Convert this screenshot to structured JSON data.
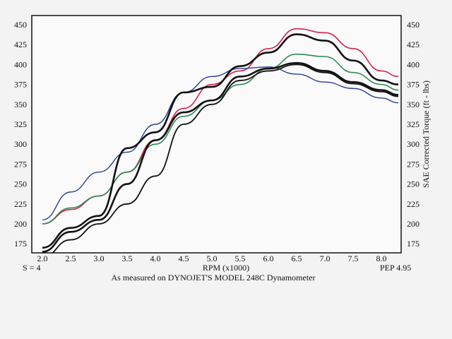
{
  "chart_data": {
    "type": "line",
    "title": "",
    "xlabel": "RPM  (x1000)",
    "ylabel": "SAE  Corrected Torque  (ft - lbs)",
    "xlim": [
      1.8,
      8.35
    ],
    "ylim": [
      162,
      462
    ],
    "x_ticks": [
      "2.0",
      "2.5",
      "3.0",
      "3.5",
      "4.0",
      "4.5",
      "5.0",
      "5.5",
      "6.0",
      "6.5",
      "7.0",
      "7.5",
      "8.0"
    ],
    "y_ticks": [
      "175",
      "200",
      "225",
      "250",
      "275",
      "300",
      "325",
      "350",
      "375",
      "400",
      "425",
      "450"
    ],
    "grid": false,
    "left_note": "S = 4",
    "right_note": "PEP  4.95",
    "caption": "As measured on DYNOJET'S MODEL 248C Dynamometer",
    "x": [
      2.0,
      2.5,
      3.0,
      3.5,
      4.0,
      4.5,
      5.0,
      5.5,
      6.0,
      6.5,
      7.0,
      7.5,
      8.0,
      8.3
    ],
    "series": [
      {
        "name": "red",
        "color": "#d8204a",
        "width": 1.6,
        "values": [
          200,
          218,
          235,
          265,
          305,
          345,
          375,
          392,
          420,
          445,
          440,
          420,
          392,
          385
        ]
      },
      {
        "name": "blue",
        "color": "#2a3c9a",
        "width": 1.4,
        "values": [
          205,
          240,
          265,
          290,
          325,
          365,
          385,
          395,
          397,
          388,
          378,
          370,
          358,
          352
        ]
      },
      {
        "name": "green",
        "color": "#2e8a56",
        "width": 1.6,
        "values": [
          200,
          220,
          235,
          265,
          300,
          335,
          355,
          375,
          395,
          413,
          410,
          390,
          375,
          368
        ]
      },
      {
        "name": "black-1",
        "color": "#111111",
        "width": 2.6,
        "values": [
          170,
          195,
          210,
          295,
          315,
          365,
          372,
          398,
          415,
          438,
          430,
          405,
          380,
          375
        ]
      },
      {
        "name": "black-2",
        "color": "#111111",
        "width": 2.6,
        "values": [
          165,
          190,
          205,
          250,
          305,
          340,
          355,
          385,
          395,
          402,
          392,
          378,
          368,
          362
        ]
      },
      {
        "name": "black-3",
        "color": "#111111",
        "width": 1.8,
        "values": [
          158,
          180,
          200,
          225,
          260,
          325,
          350,
          380,
          392,
          400,
          390,
          376,
          366,
          360
        ]
      }
    ]
  }
}
